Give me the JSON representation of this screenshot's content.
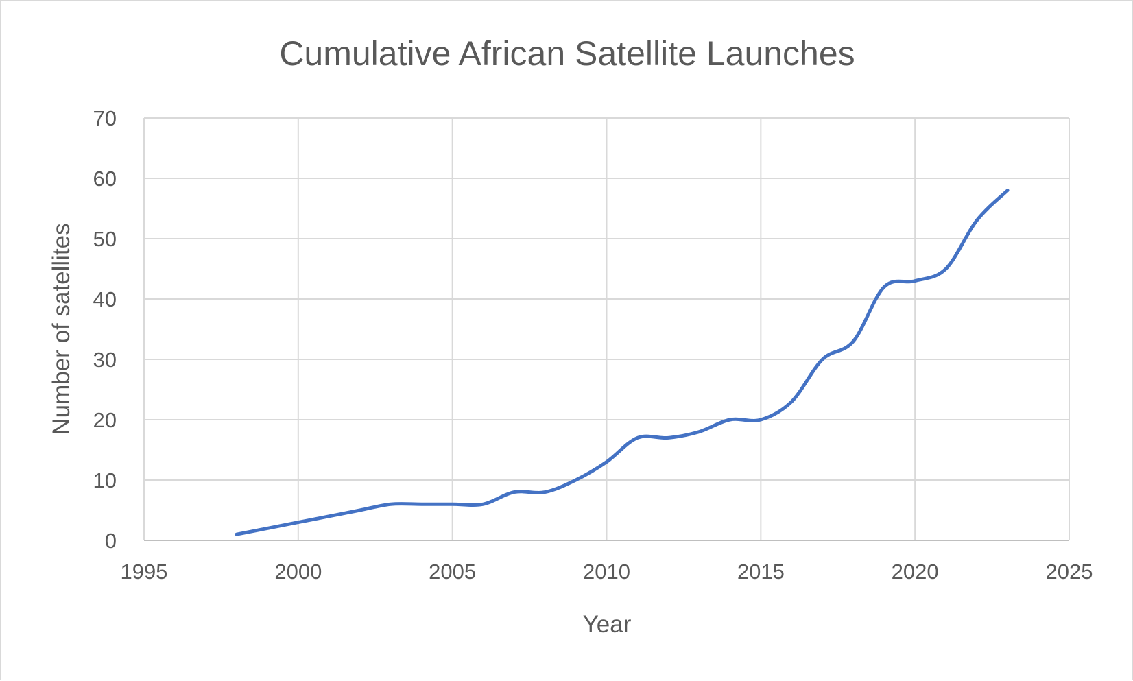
{
  "chart_data": {
    "type": "line",
    "title": "Cumulative African Satellite Launches",
    "xlabel": "Year",
    "ylabel": "Number of satellites",
    "xlim": [
      1995,
      2025
    ],
    "ylim": [
      0,
      70
    ],
    "xticks": [
      1995,
      2000,
      2005,
      2010,
      2015,
      2020,
      2025
    ],
    "yticks": [
      0,
      10,
      20,
      30,
      40,
      50,
      60,
      70
    ],
    "grid": true,
    "smoothed": true,
    "series_color": "#4472C4",
    "x": [
      1998,
      1999,
      2000,
      2001,
      2002,
      2003,
      2004,
      2005,
      2006,
      2007,
      2008,
      2009,
      2010,
      2011,
      2012,
      2013,
      2014,
      2015,
      2016,
      2017,
      2018,
      2019,
      2020,
      2021,
      2022,
      2023
    ],
    "y": [
      1,
      2,
      3,
      4,
      5,
      6,
      6,
      6,
      6,
      8,
      8,
      10,
      13,
      17,
      17,
      18,
      20,
      20,
      23,
      30,
      33,
      42,
      43,
      45,
      53,
      58
    ]
  }
}
